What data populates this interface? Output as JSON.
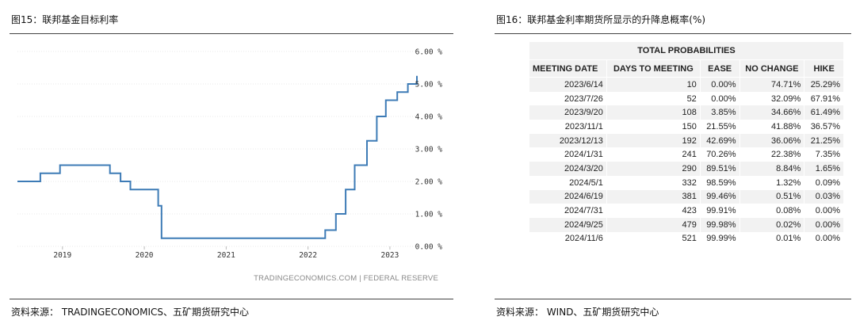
{
  "left": {
    "title": "图15：联邦基金目标利率",
    "source": "资料来源： TRADINGECONOMICS、五矿期货研究中心",
    "attribution": "TRADINGECONOMICS.COM | FEDERAL RESERVE"
  },
  "right": {
    "title": "图16：联邦基金利率期货所显示的升降息概率(%)",
    "source": "资料来源： WIND、五矿期货研究中心"
  },
  "chart_data": {
    "type": "line",
    "title": "",
    "xlabel": "",
    "ylabel": "",
    "x_domain": [
      2018.45,
      2023.33
    ],
    "ylim": [
      0,
      6
    ],
    "y_ticks": [
      "0.00 %",
      "1.00 %",
      "2.00 %",
      "3.00 %",
      "4.00 %",
      "5.00 %",
      "6.00 %"
    ],
    "x_ticks": [
      {
        "label": "2019",
        "x": 2019.0
      },
      {
        "label": "2020",
        "x": 2020.0
      },
      {
        "label": "2021",
        "x": 2021.0
      },
      {
        "label": "2022",
        "x": 2022.0
      },
      {
        "label": "2023",
        "x": 2023.0
      }
    ],
    "grid": true,
    "series": [
      {
        "color": "#3d7bb6",
        "points": [
          [
            2018.45,
            2.0
          ],
          [
            2018.73,
            2.0
          ],
          [
            2018.73,
            2.25
          ],
          [
            2018.97,
            2.25
          ],
          [
            2018.97,
            2.5
          ],
          [
            2019.58,
            2.5
          ],
          [
            2019.58,
            2.25
          ],
          [
            2019.71,
            2.25
          ],
          [
            2019.71,
            2.0
          ],
          [
            2019.83,
            2.0
          ],
          [
            2019.83,
            1.75
          ],
          [
            2020.17,
            1.75
          ],
          [
            2020.17,
            1.25
          ],
          [
            2020.21,
            1.25
          ],
          [
            2020.21,
            0.25
          ],
          [
            2022.21,
            0.25
          ],
          [
            2022.21,
            0.5
          ],
          [
            2022.34,
            0.5
          ],
          [
            2022.34,
            1.0
          ],
          [
            2022.46,
            1.0
          ],
          [
            2022.46,
            1.75
          ],
          [
            2022.57,
            1.75
          ],
          [
            2022.57,
            2.5
          ],
          [
            2022.72,
            2.5
          ],
          [
            2022.72,
            3.25
          ],
          [
            2022.84,
            3.25
          ],
          [
            2022.84,
            4.0
          ],
          [
            2022.95,
            4.0
          ],
          [
            2022.95,
            4.5
          ],
          [
            2023.09,
            4.5
          ],
          [
            2023.09,
            4.75
          ],
          [
            2023.22,
            4.75
          ],
          [
            2023.22,
            5.0
          ],
          [
            2023.33,
            5.0
          ],
          [
            2023.33,
            5.25
          ]
        ]
      }
    ]
  },
  "table": {
    "super_header": "TOTAL PROBABILITIES",
    "headers": [
      "MEETING DATE",
      "DAYS TO MEETING",
      "EASE",
      "NO CHANGE",
      "HIKE"
    ],
    "rows": [
      [
        "2023/6/14",
        "10",
        "0.00%",
        "74.71%",
        "25.29%"
      ],
      [
        "2023/7/26",
        "52",
        "0.00%",
        "32.09%",
        "67.91%"
      ],
      [
        "2023/9/20",
        "108",
        "3.85%",
        "34.66%",
        "61.49%"
      ],
      [
        "2023/11/1",
        "150",
        "21.55%",
        "41.88%",
        "36.57%"
      ],
      [
        "2023/12/13",
        "192",
        "42.69%",
        "36.06%",
        "21.25%"
      ],
      [
        "2024/1/31",
        "241",
        "70.26%",
        "22.38%",
        "7.35%"
      ],
      [
        "2024/3/20",
        "290",
        "89.51%",
        "8.84%",
        "1.65%"
      ],
      [
        "2024/5/1",
        "332",
        "98.59%",
        "1.32%",
        "0.09%"
      ],
      [
        "2024/6/19",
        "381",
        "99.46%",
        "0.51%",
        "0.03%"
      ],
      [
        "2024/7/31",
        "423",
        "99.91%",
        "0.08%",
        "0.00%"
      ],
      [
        "2024/9/25",
        "479",
        "99.98%",
        "0.02%",
        "0.00%"
      ],
      [
        "2024/11/6",
        "521",
        "99.99%",
        "0.01%",
        "0.00%"
      ]
    ]
  }
}
